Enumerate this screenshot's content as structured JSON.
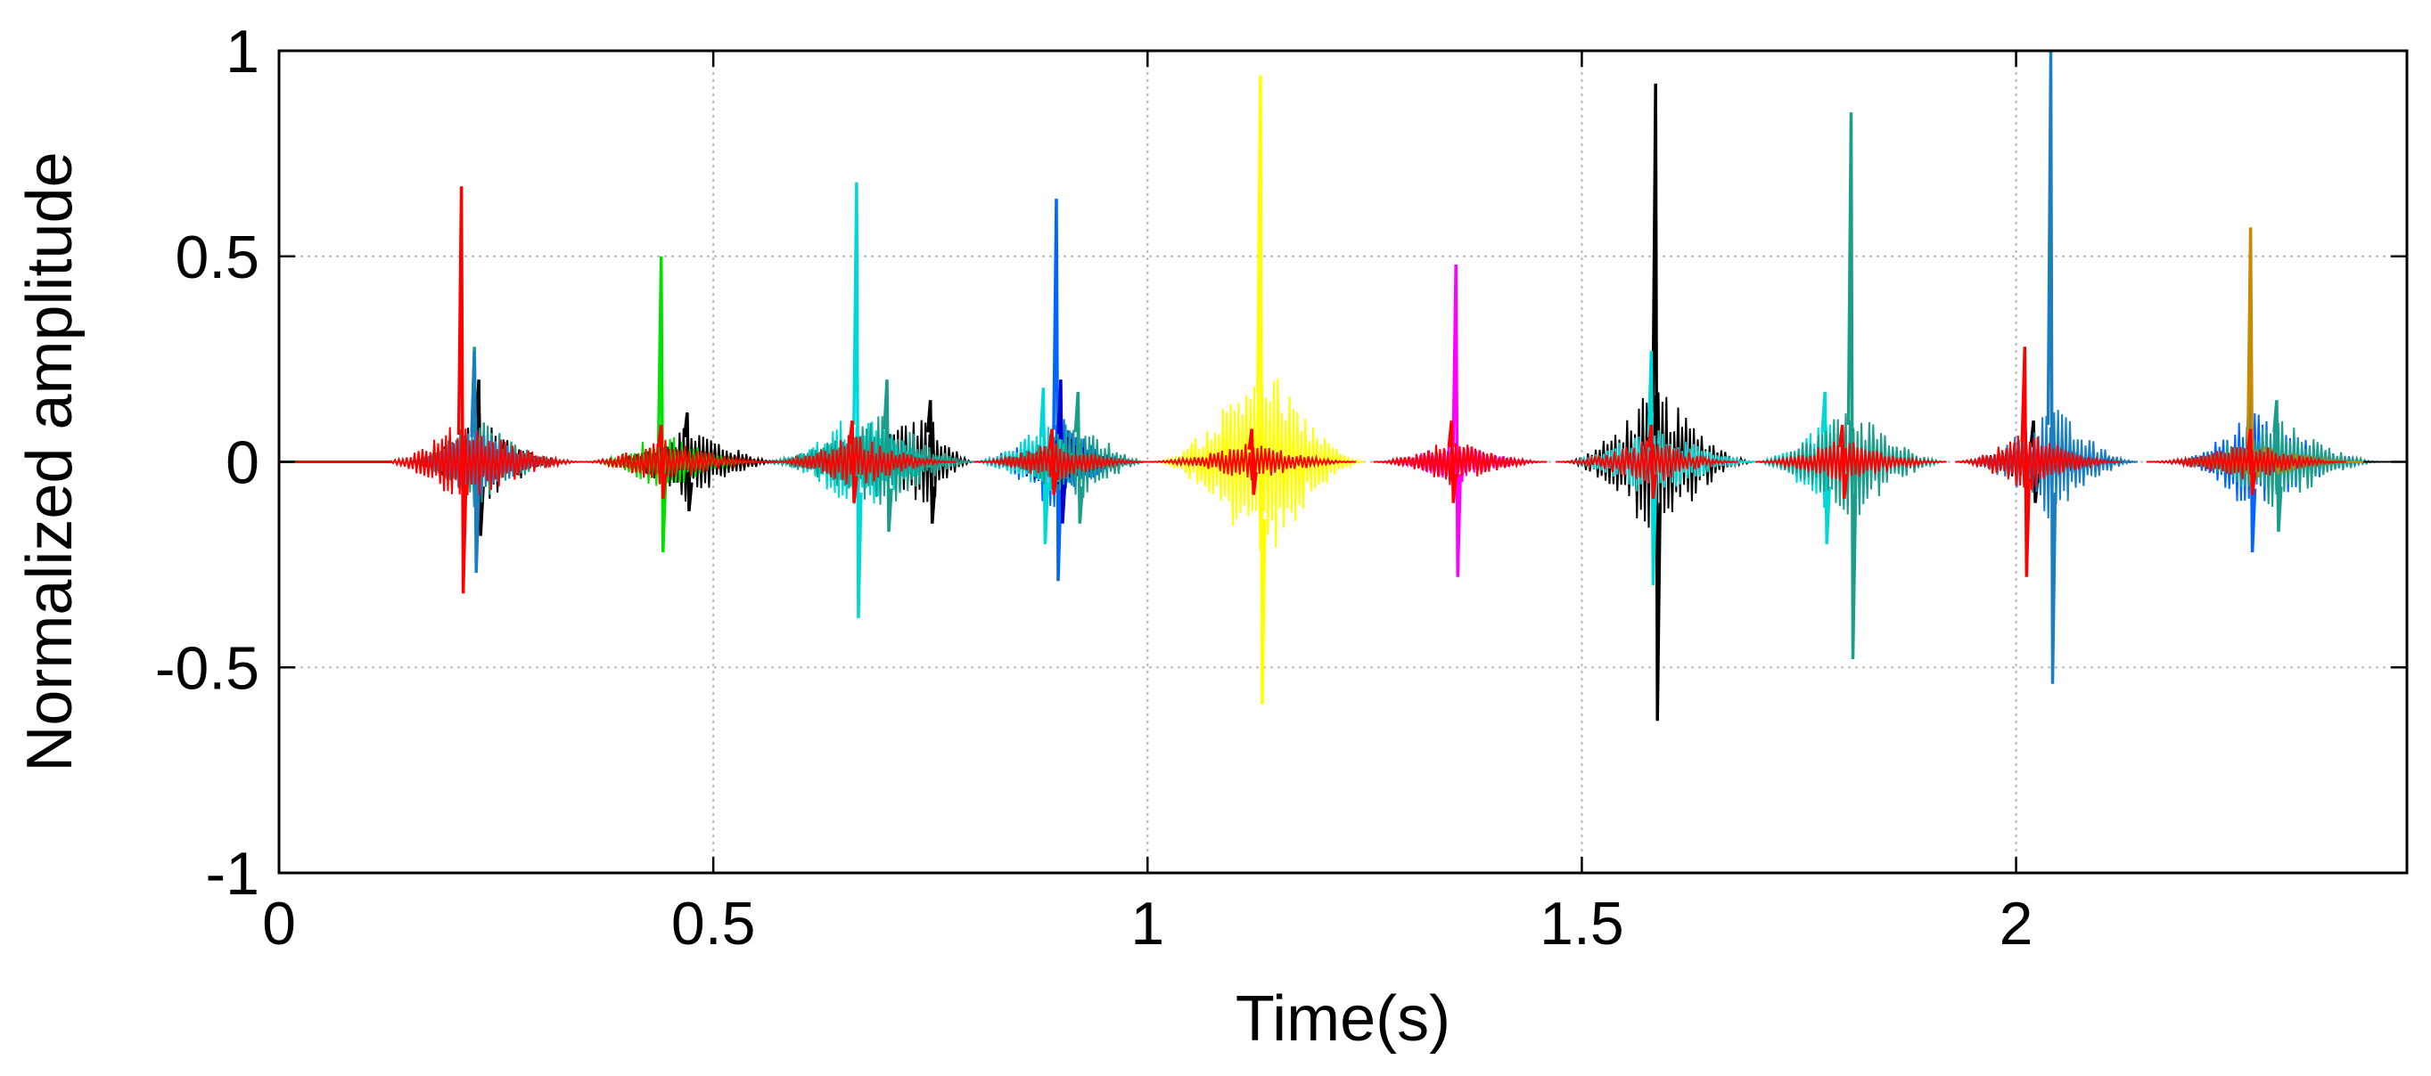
{
  "chart_data": {
    "type": "line",
    "title": "",
    "xlabel": "Time(s)",
    "ylabel": "Normalized amplitude",
    "xlim": [
      0,
      2.45
    ],
    "ylim": [
      -1,
      1
    ],
    "grid": true,
    "legend": "none",
    "x_ticks": [
      0,
      0.5,
      1,
      1.5,
      2
    ],
    "x_tick_labels": [
      "0",
      "0.5",
      "1",
      "1.5",
      "2"
    ],
    "y_ticks": [
      -1,
      -0.5,
      0,
      0.5,
      1
    ],
    "y_tick_labels": [
      "-1",
      "-0.5",
      "0",
      "0.5",
      "1"
    ],
    "series": [
      {
        "color": "#000000",
        "events": [
          {
            "t0": 0.15,
            "t1": 0.33,
            "peak_t": 0.23,
            "env": 0.12,
            "max": 0.2,
            "min": -0.18
          },
          {
            "t0": 0.38,
            "t1": 0.58,
            "peak_t": 0.47,
            "env": 0.1,
            "max": 0.12,
            "min": -0.12
          },
          {
            "t0": 0.55,
            "t1": 0.8,
            "peak_t": 0.75,
            "env": 0.12,
            "max": 0.15,
            "min": -0.15
          },
          {
            "t0": 1.48,
            "t1": 1.7,
            "peak_t": 1.585,
            "env": 0.2,
            "max": 0.92,
            "min": -0.63
          },
          {
            "t0": 1.93,
            "t1": 2.14,
            "peak_t": 2.02,
            "env": 0.06,
            "max": 0.1,
            "min": -0.1
          }
        ]
      },
      {
        "color": "#0066ff",
        "events": [
          {
            "t0": 0.8,
            "t1": 0.98,
            "peak_t": 0.895,
            "env": 0.13,
            "max": 0.64,
            "min": -0.29
          },
          {
            "t0": 2.18,
            "t1": 2.42,
            "peak_t": 2.27,
            "env": 0.13,
            "max": 0.24,
            "min": -0.22
          }
        ]
      },
      {
        "color": "#0000cd",
        "events": [
          {
            "t0": 0.8,
            "t1": 0.98,
            "peak_t": 0.9,
            "env": 0.08,
            "max": 0.2,
            "min": -0.15
          }
        ]
      },
      {
        "color": "#00d8d8",
        "events": [
          {
            "t0": 0.57,
            "t1": 0.78,
            "peak_t": 0.665,
            "env": 0.15,
            "max": 0.68,
            "min": -0.38
          },
          {
            "t0": 1.48,
            "t1": 1.7,
            "peak_t": 1.58,
            "env": 0.1,
            "max": 0.27,
            "min": -0.3
          },
          {
            "t0": 1.7,
            "t1": 1.9,
            "peak_t": 1.78,
            "env": 0.12,
            "max": 0.17,
            "min": -0.2
          },
          {
            "t0": 0.8,
            "t1": 0.95,
            "peak_t": 0.88,
            "env": 0.1,
            "max": 0.18,
            "min": -0.2
          }
        ]
      },
      {
        "color": "#1a9e8a",
        "events": [
          {
            "t0": 0.15,
            "t1": 0.33,
            "peak_t": 0.225,
            "env": 0.12,
            "max": 0.28,
            "min": -0.14
          },
          {
            "t0": 0.55,
            "t1": 0.8,
            "peak_t": 0.7,
            "env": 0.13,
            "max": 0.2,
            "min": -0.17
          },
          {
            "t0": 0.82,
            "t1": 1.0,
            "peak_t": 0.92,
            "env": 0.12,
            "max": 0.17,
            "min": -0.15
          },
          {
            "t0": 1.7,
            "t1": 1.92,
            "peak_t": 1.81,
            "env": 0.15,
            "max": 0.85,
            "min": -0.48
          },
          {
            "t0": 2.18,
            "t1": 2.42,
            "peak_t": 2.3,
            "env": 0.12,
            "max": 0.15,
            "min": -0.17
          }
        ]
      },
      {
        "color": "#1b7fbf",
        "events": [
          {
            "t0": 0.15,
            "t1": 0.32,
            "peak_t": 0.225,
            "env": 0.1,
            "max": 0.27,
            "min": -0.27
          },
          {
            "t0": 1.94,
            "t1": 2.14,
            "peak_t": 2.04,
            "env": 0.15,
            "max": 1.0,
            "min": -0.54
          }
        ]
      },
      {
        "color": "#ffff00",
        "events": [
          {
            "t0": 1.01,
            "t1": 1.25,
            "peak_t": 1.13,
            "env": 0.28,
            "max": 0.94,
            "min": -0.59
          }
        ]
      },
      {
        "color": "#ff00ff",
        "events": [
          {
            "t0": 1.27,
            "t1": 1.45,
            "peak_t": 1.355,
            "env": 0.06,
            "max": 0.48,
            "min": -0.28
          }
        ]
      },
      {
        "color": "#00e000",
        "events": [
          {
            "t0": 0.36,
            "t1": 0.55,
            "peak_t": 0.44,
            "env": 0.08,
            "max": 0.5,
            "min": -0.22
          }
        ]
      },
      {
        "color": "#c88a00",
        "events": [
          {
            "t0": 2.2,
            "t1": 2.4,
            "peak_t": 2.27,
            "env": 0.05,
            "max": 0.57,
            "min": -0.06
          }
        ]
      },
      {
        "color": "#ff0000",
        "events": [
          {
            "t0": 0.12,
            "t1": 0.35,
            "peak_t": 0.21,
            "env": 0.11,
            "max": 0.67,
            "min": -0.32
          },
          {
            "t0": 0.35,
            "t1": 0.57,
            "peak_t": 0.44,
            "env": 0.06,
            "max": 0.09,
            "min": -0.09
          },
          {
            "t0": 0.57,
            "t1": 0.78,
            "peak_t": 0.66,
            "env": 0.07,
            "max": 0.1,
            "min": -0.1
          },
          {
            "t0": 0.8,
            "t1": 1.0,
            "peak_t": 0.89,
            "env": 0.05,
            "max": 0.08,
            "min": -0.08
          },
          {
            "t0": 1.0,
            "t1": 1.24,
            "peak_t": 1.12,
            "env": 0.05,
            "max": 0.08,
            "min": -0.08
          },
          {
            "t0": 1.26,
            "t1": 1.46,
            "peak_t": 1.35,
            "env": 0.06,
            "max": 0.1,
            "min": -0.1
          },
          {
            "t0": 1.47,
            "t1": 1.68,
            "peak_t": 1.58,
            "env": 0.06,
            "max": 0.09,
            "min": -0.09
          },
          {
            "t0": 1.7,
            "t1": 1.92,
            "peak_t": 1.8,
            "env": 0.06,
            "max": 0.09,
            "min": -0.09
          },
          {
            "t0": 1.93,
            "t1": 2.12,
            "peak_t": 2.01,
            "env": 0.08,
            "max": 0.28,
            "min": -0.28
          },
          {
            "t0": 2.15,
            "t1": 2.38,
            "peak_t": 2.27,
            "env": 0.05,
            "max": 0.08,
            "min": -0.08
          }
        ]
      }
    ]
  }
}
